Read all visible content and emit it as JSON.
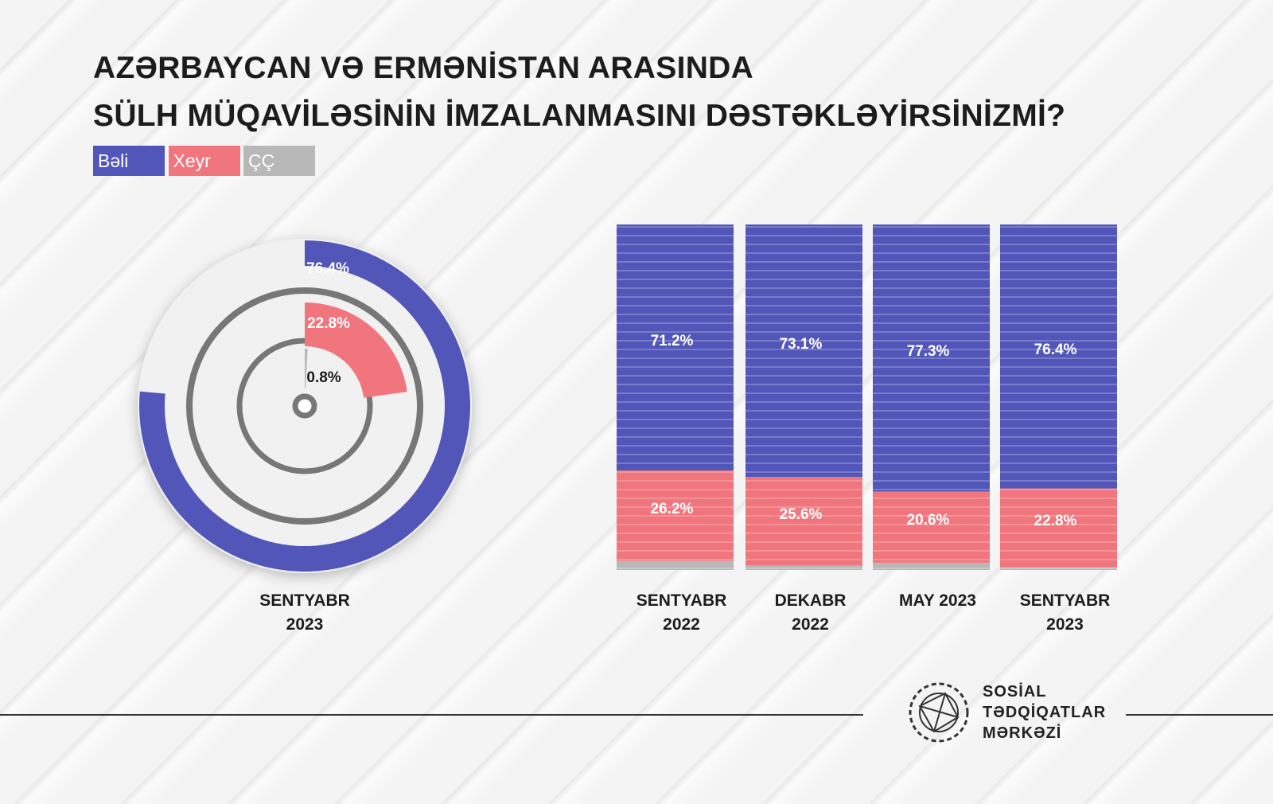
{
  "title": "AZƏRBAYCAN VƏ ERMƏNİSTAN ARASINDA\nSÜLH MÜQAVİLƏSİNİN İMZALANMASINI DƏSTƏKLƏYİRSİNİZMİ?",
  "chart_data": [
    {
      "type": "radial",
      "categories": [
        "SENTYABR 2023"
      ],
      "ylim": [
        0,
        100
      ],
      "series": [
        {
          "color": "#5256b8",
          "values": [
            76.4
          ],
          "value_labels": [
            "76.4%"
          ]
        },
        {
          "color": "#f0757c",
          "values": [
            22.8
          ],
          "value_labels": [
            "22.8%"
          ]
        },
        {
          "color": "#b8b8b8",
          "values": [
            0.8
          ],
          "value_labels": [
            "0.8%"
          ]
        }
      ]
    },
    {
      "type": "bar",
      "stacked": true,
      "categories": [
        "SENTYABR 2022",
        "DEKABR 2022",
        "MAY 2023",
        "SENTYABR 2023"
      ],
      "ylim": [
        0,
        100
      ],
      "series": [
        {
          "name": "Bəli",
          "color": "#5256b8",
          "values": [
            71.2,
            73.1,
            77.3,
            76.4
          ],
          "value_labels": [
            "71.2%",
            "73.1%",
            "77.3%",
            "76.4%"
          ]
        },
        {
          "name": "Xeyr",
          "color": "#f0757c",
          "values": [
            26.2,
            25.6,
            20.6,
            22.8
          ],
          "value_labels": [
            "26.2%",
            "25.6%",
            "20.6%",
            "22.8%"
          ]
        },
        {
          "name": "ÇÇ",
          "color": "#b8b8b8",
          "values": [
            2.6,
            1.3,
            2.1,
            0.8
          ]
        }
      ]
    }
  ],
  "logo": "SOSİAL TƏDQİQATLAR MƏRKƏZİ"
}
